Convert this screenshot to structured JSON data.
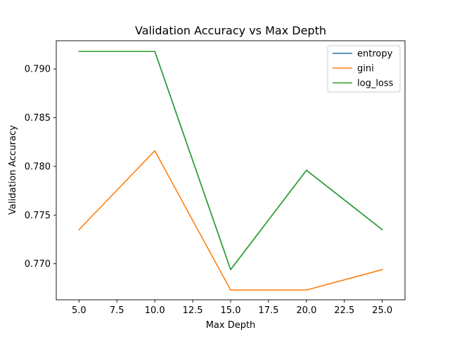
{
  "chart_data": {
    "type": "line",
    "title": "Validation Accuracy vs Max Depth",
    "xlabel": "Max Depth",
    "ylabel": "Validation Accuracy",
    "x": [
      5,
      10,
      15,
      20,
      25
    ],
    "series": [
      {
        "name": "entropy",
        "color": "#1f77b4",
        "values": [
          0.7918,
          0.7918,
          0.7694,
          0.7796,
          0.7735
        ]
      },
      {
        "name": "gini",
        "color": "#ff7f0e",
        "values": [
          0.7735,
          0.7816,
          0.7673,
          0.7673,
          0.7694
        ]
      },
      {
        "name": "log_loss",
        "color": "#2ca02c",
        "values": [
          0.7918,
          0.7918,
          0.7694,
          0.7796,
          0.7735
        ]
      }
    ],
    "xlim": [
      3.5,
      26.5
    ],
    "ylim": [
      0.7663,
      0.7929
    ],
    "xticks": [
      5.0,
      7.5,
      10.0,
      12.5,
      15.0,
      17.5,
      20.0,
      22.5,
      25.0
    ],
    "xtick_labels": [
      "5.0",
      "7.5",
      "10.0",
      "12.5",
      "15.0",
      "17.5",
      "20.0",
      "22.5",
      "25.0"
    ],
    "yticks": [
      0.77,
      0.775,
      0.78,
      0.785,
      0.79
    ],
    "ytick_labels": [
      "0.770",
      "0.775",
      "0.780",
      "0.785",
      "0.790"
    ],
    "grid": false,
    "legend_position": "top-right"
  }
}
